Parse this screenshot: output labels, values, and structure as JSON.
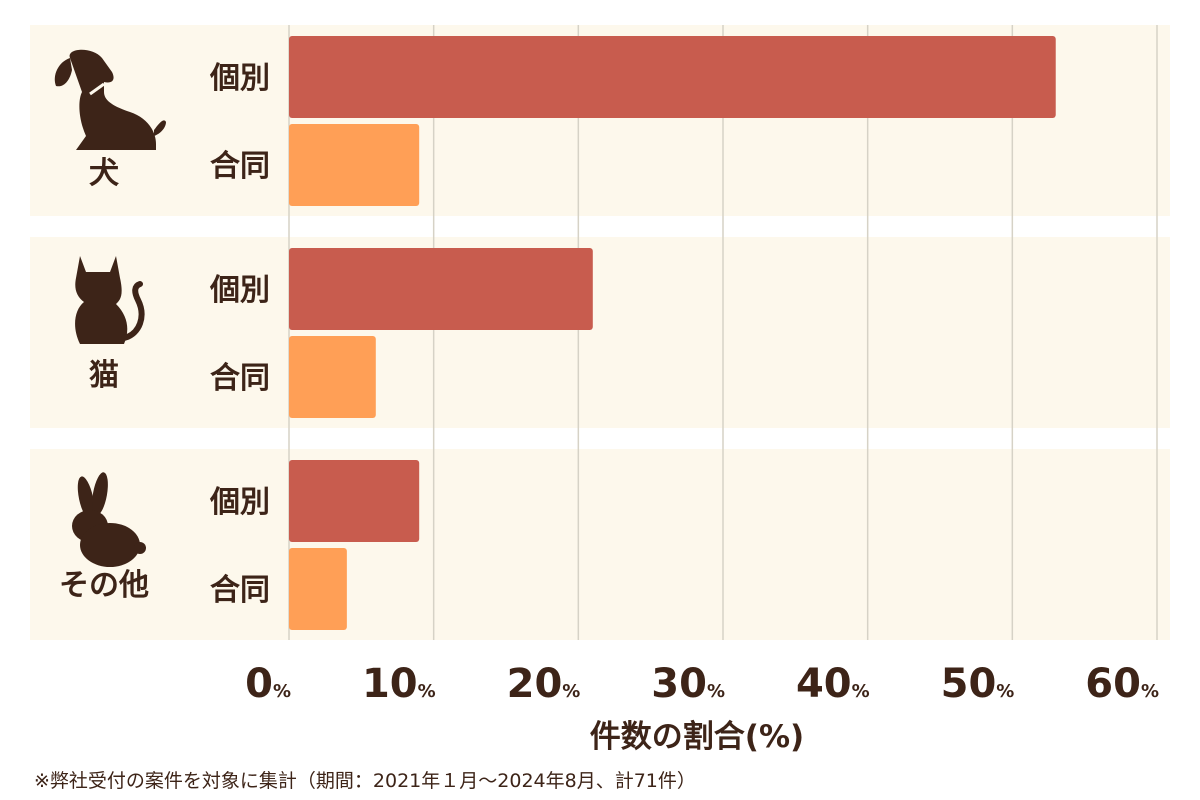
{
  "chart_data": {
    "type": "bar",
    "orientation": "horizontal",
    "xlabel": "件数の割合(%)",
    "xlim": [
      0,
      60
    ],
    "xticks": [
      0,
      10,
      20,
      30,
      40,
      50,
      60
    ],
    "tick_unit": "%",
    "grid": true,
    "groups": [
      {
        "label": "犬",
        "icon": "dog-icon",
        "bars": [
          {
            "label": "個別",
            "value": 53
          },
          {
            "label": "合同",
            "value": 9
          }
        ]
      },
      {
        "label": "猫",
        "icon": "cat-icon",
        "bars": [
          {
            "label": "個別",
            "value": 21
          },
          {
            "label": "合同",
            "value": 6
          }
        ]
      },
      {
        "label": "その他",
        "icon": "rabbit-icon",
        "bars": [
          {
            "label": "個別",
            "value": 9
          },
          {
            "label": "合同",
            "value": 4
          }
        ]
      }
    ],
    "colors": {
      "個別": "#c85c4e",
      "合同": "#ff9f56",
      "panel": "#fdf8ec",
      "grid": "#d6d2c6",
      "text": "#3d2418"
    }
  },
  "footnote": "※弊社受付の案件を対象に集計（期間：2021年１月～2024年8月、計71件）"
}
